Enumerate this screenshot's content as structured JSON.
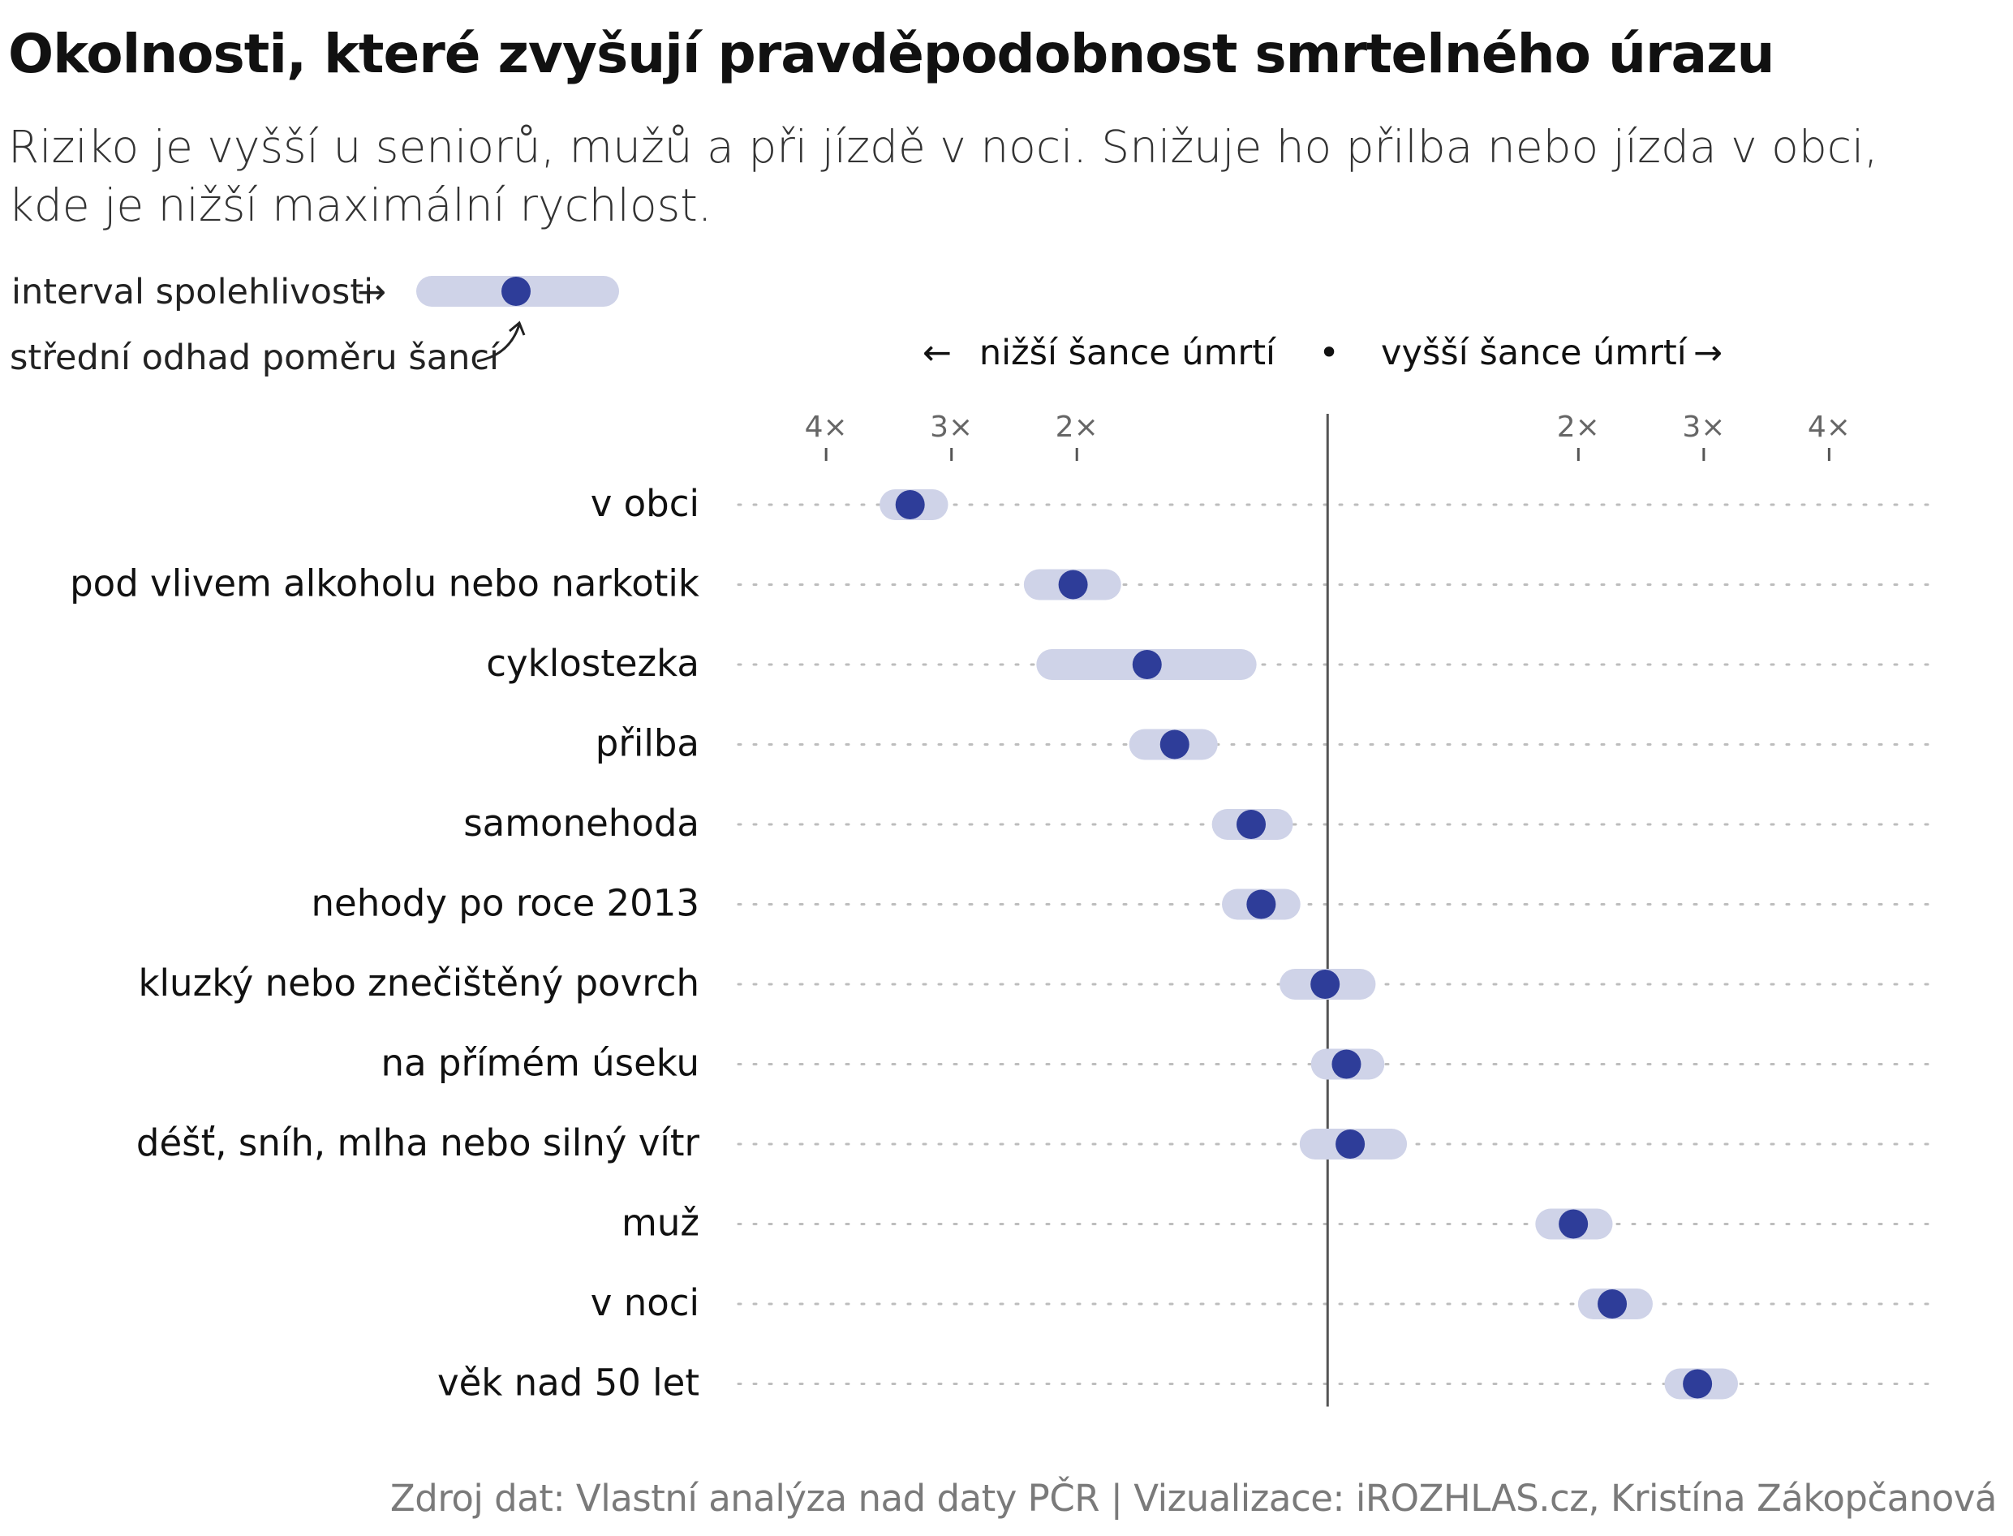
{
  "title": "Okolnosti, které zvyšují pravděpodobnost smrtelného úrazu",
  "subtitle": [
    "Riziko je vyšší u seniorů, mužů a při jízdě v noci. Snižuje ho přilba nebo jízda v obci,",
    "kde je nižší maximální rychlost."
  ],
  "legend": {
    "interval_label": "interval spolehlivosti",
    "interval_arrow": "→",
    "estimate_label": "střední odhad poměru šancí"
  },
  "direction": {
    "lower_arrow": "←",
    "lower_label": "nižší šance úmrtí",
    "separator": "•",
    "higher_label": "vyšší šance úmrtí",
    "higher_arrow": "→"
  },
  "source": "Zdroj dat: Vlastní analýza nad daty PČR |  Vizualizace: iROZHLAS.cz, Kristína Zákopčanová",
  "colors": {
    "point": "#2e3d99",
    "interval": "#cfd3e8",
    "gridline": "#bdbdbd",
    "reference_line": "#555555",
    "tick_text": "#666666"
  },
  "chart_data": {
    "type": "dot-interval",
    "scale": "symmetric-odds-ratio",
    "x_ticks": [
      {
        "value": -4,
        "label": "4×"
      },
      {
        "value": -3,
        "label": "3×"
      },
      {
        "value": -2,
        "label": "2×"
      },
      {
        "value": 2,
        "label": "2×"
      },
      {
        "value": 3,
        "label": "3×"
      },
      {
        "value": 4,
        "label": "4×"
      }
    ],
    "xlim": [
      -4.7,
      4.8
    ],
    "reference": 0,
    "rows": [
      {
        "label": "v obci",
        "estimate": -3.33,
        "low": -3.45,
        "high": -3.15
      },
      {
        "label": "pod vlivem alkoholu nebo narkotik",
        "estimate": -2.03,
        "low": -2.3,
        "high": -1.77
      },
      {
        "label": "cyklostezka",
        "estimate": -1.44,
        "low": -2.2,
        "high": -0.69
      },
      {
        "label": "přilba",
        "estimate": -1.22,
        "low": -1.46,
        "high": -1.0
      },
      {
        "label": "samonehoda",
        "estimate": -0.61,
        "low": -0.8,
        "high": -0.4
      },
      {
        "label": "nehody po roce 2013",
        "estimate": -0.53,
        "low": -0.72,
        "high": -0.34
      },
      {
        "label": "kluzký nebo znečištěný povrch",
        "estimate": -0.02,
        "low": -0.26,
        "high": 0.26
      },
      {
        "label": "na přímém úseku",
        "estimate": 0.15,
        "low": -0.01,
        "high": 0.33
      },
      {
        "label": "déšť, sníh, mlha nebo silný vítr",
        "estimate": 0.18,
        "low": -0.1,
        "high": 0.51
      },
      {
        "label": "muž",
        "estimate": 1.96,
        "low": 1.78,
        "high": 2.15
      },
      {
        "label": "v noci",
        "estimate": 2.27,
        "low": 2.12,
        "high": 2.47
      },
      {
        "label": "věk nad 50 let",
        "estimate": 2.95,
        "low": 2.81,
        "high": 3.15
      }
    ]
  }
}
